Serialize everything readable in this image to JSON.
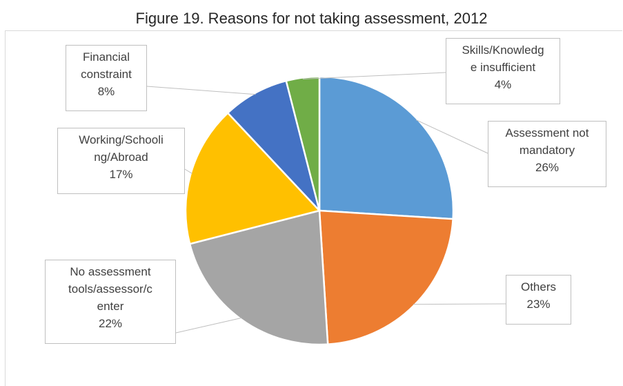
{
  "chart_data": {
    "type": "pie",
    "title": "Figure 19. Reasons for not taking assessment, 2012",
    "slices": [
      {
        "name": "Assessment not mandatory",
        "value": 26,
        "pct_label": "26%",
        "label_lines": [
          "Assessment not",
          "mandatory"
        ],
        "color": "#5b9bd5"
      },
      {
        "name": "Others",
        "value": 23,
        "pct_label": "23%",
        "label_lines": [
          "Others"
        ],
        "color": "#ed7d31"
      },
      {
        "name": "No assessment tools/assessor/center",
        "value": 22,
        "pct_label": "22%",
        "label_lines": [
          "No assessment",
          "tools/assessor/c",
          "enter"
        ],
        "color": "#a5a5a5"
      },
      {
        "name": "Working/Schooling/Abroad",
        "value": 17,
        "pct_label": "17%",
        "label_lines": [
          "Working/Schooli",
          "ng/Abroad"
        ],
        "color": "#ffc000"
      },
      {
        "name": "Financial constraint",
        "value": 8,
        "pct_label": "8%",
        "label_lines": [
          "Financial",
          "constraint"
        ],
        "color": "#4472c4"
      },
      {
        "name": "Skills/Knowledge insufficient",
        "value": 4,
        "pct_label": "4%",
        "label_lines": [
          "Skills/Knowledg",
          "e insufficient"
        ],
        "color": "#70ad47"
      }
    ],
    "legend": "none",
    "data_labels": "callout"
  }
}
